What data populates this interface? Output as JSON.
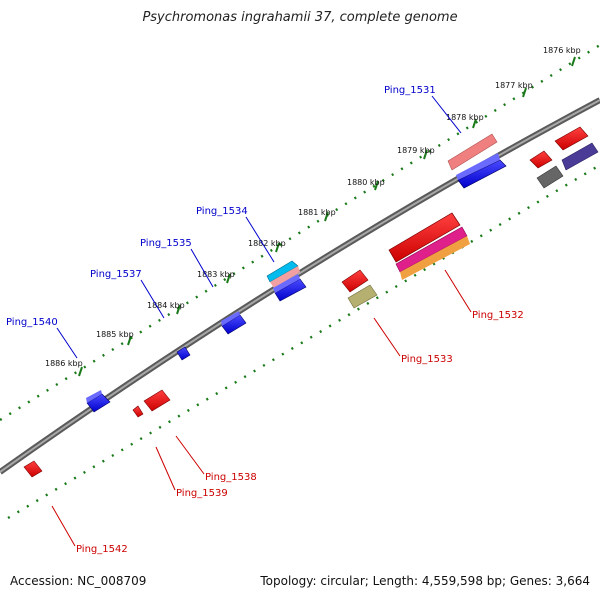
{
  "title": "Psychromonas ingrahamii 37, complete genome",
  "footer": {
    "accession": "Accession: NC_008709",
    "summary": "Topology: circular; Length: 4,559,598 bp; Genes: 3,664"
  },
  "kbp_labels": [
    "1876 kbp",
    "1877 kbp",
    "1878 kbp",
    "1879 kbp",
    "1880 kbp",
    "1881 kbp",
    "1882 kbp",
    "1883 kbp",
    "1884 kbp",
    "1885 kbp",
    "1886 kbp"
  ],
  "gene_labels_forward": [
    "Ping_1531",
    "Ping_1534",
    "Ping_1535",
    "Ping_1537",
    "Ping_1540"
  ],
  "gene_labels_reverse": [
    "Ping_1532",
    "Ping_1533",
    "Ping_1538",
    "Ping_1539",
    "Ping_1542"
  ],
  "colors": {
    "forward_label": "#0000cc",
    "reverse_label": "#cc0000",
    "backbone": "#808080",
    "tick_green": "#1a7a1a"
  }
}
